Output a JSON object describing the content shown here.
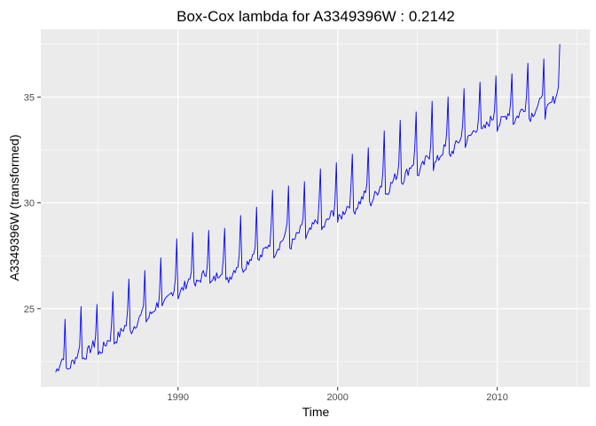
{
  "chart_data": {
    "type": "line",
    "title": "Box-Cox lambda for A3349396W :  0.2142",
    "xlabel": "Time",
    "ylabel": "A3349396W  (transformed)",
    "xlim": [
      1981.4,
      2015.8
    ],
    "ylim": [
      21.3,
      38.2
    ],
    "x_ticks": [
      1990,
      2000,
      2010
    ],
    "y_ticks": [
      25,
      30,
      35
    ],
    "minor_x_ticks": [
      1985,
      1995,
      2005,
      2015
    ],
    "minor_y_ticks": [
      22.5,
      27.5,
      32.5,
      37.5
    ],
    "grid": true,
    "background": "#EBEBEB",
    "grid_color": "#FFFFFF",
    "series": [
      {
        "color": "#0000FF",
        "x_start": 1982.33,
        "x_end": 2013.92,
        "frequency": 12,
        "x": [
          1982.33,
          1982.92,
          1983.0,
          1983.92,
          1984.0,
          1984.92,
          1985.0,
          1985.92,
          1986.0,
          1986.92,
          1987.0,
          1987.92,
          1988.0,
          1988.92,
          1989.0,
          1989.92,
          1990.0,
          1990.92,
          1991.0,
          1991.92,
          1992.0,
          1992.92,
          1993.0,
          1993.92,
          1994.0,
          1994.92,
          1995.0,
          1995.92,
          1996.0,
          1996.92,
          1997.0,
          1997.92,
          1998.0,
          1998.92,
          1999.0,
          1999.92,
          2000.0,
          2000.92,
          2001.0,
          2001.92,
          2002.0,
          2002.92,
          2003.0,
          2003.92,
          2004.0,
          2004.92,
          2005.0,
          2005.92,
          2006.0,
          2006.92,
          2007.0,
          2007.92,
          2008.0,
          2008.92,
          2009.0,
          2009.92,
          2010.0,
          2010.92,
          2011.0,
          2011.92,
          2012.0,
          2012.92,
          2013.0,
          2013.92
        ],
        "y": [
          22.0,
          24.5,
          22.0,
          25.1,
          22.6,
          25.2,
          22.8,
          25.8,
          23.4,
          26.4,
          23.9,
          26.8,
          24.4,
          27.4,
          25.0,
          28.3,
          25.6,
          28.6,
          26.0,
          28.7,
          26.1,
          28.8,
          26.2,
          29.4,
          26.8,
          29.8,
          27.2,
          30.6,
          27.6,
          30.8,
          27.9,
          31.0,
          28.3,
          31.6,
          28.7,
          31.9,
          29.1,
          32.3,
          29.6,
          32.6,
          29.9,
          33.4,
          30.4,
          33.9,
          31.0,
          34.3,
          31.3,
          34.8,
          31.7,
          35.0,
          32.2,
          35.4,
          32.8,
          35.7,
          33.3,
          36.0,
          33.6,
          36.1,
          33.8,
          36.6,
          34.0,
          36.8,
          34.2,
          37.5
        ]
      }
    ]
  }
}
